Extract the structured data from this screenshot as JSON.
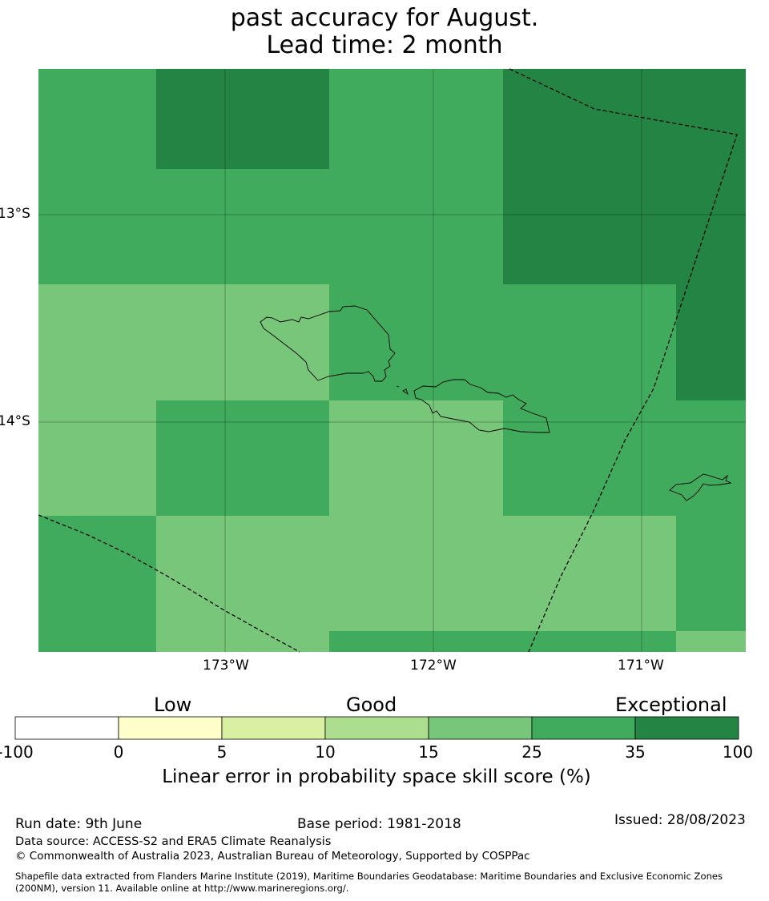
{
  "title": {
    "line1": "past accuracy for August.",
    "line2": "Lead time: 2 month"
  },
  "map": {
    "lat_ticks": [
      "13°S",
      "14°S"
    ],
    "lon_ticks": [
      "173°W",
      "172°W",
      "171°W"
    ],
    "colors": {
      "skill_15_25": "#78c679",
      "skill_25_35": "#41ab5d",
      "skill_35_100": "#238443"
    }
  },
  "colorbar": {
    "categories": [
      "Low",
      "Good",
      "Exceptional"
    ],
    "ticks": [
      "-100",
      "0",
      "5",
      "10",
      "15",
      "25",
      "35",
      "100"
    ],
    "colors": [
      "#ffffff",
      "#ffffcc",
      "#d9f0a3",
      "#addd8e",
      "#78c679",
      "#41ab5d",
      "#238443"
    ],
    "label": "Linear error in probability space skill score (%)"
  },
  "footer": {
    "run_date": "Run date: 9th June",
    "base_period": "Base period: 1981-2018",
    "issued": "Issued: 28/08/2023",
    "data_source": "Data source: ACCESS-S2 and ERA5 Climate Reanalysis",
    "copyright": "© Commonwealth of Australia 2023, Australian Bureau of Meteorology, Supported by COSPPac",
    "shapefile_line1": "Shapefile data extracted from Flanders Marine Institute (2019), Maritime Boundaries Geodatabase: Maritime Boundaries and Exclusive Economic Zones",
    "shapefile_line2": "(200NM), version 11. Available online at http://www.marineregions.org/."
  }
}
